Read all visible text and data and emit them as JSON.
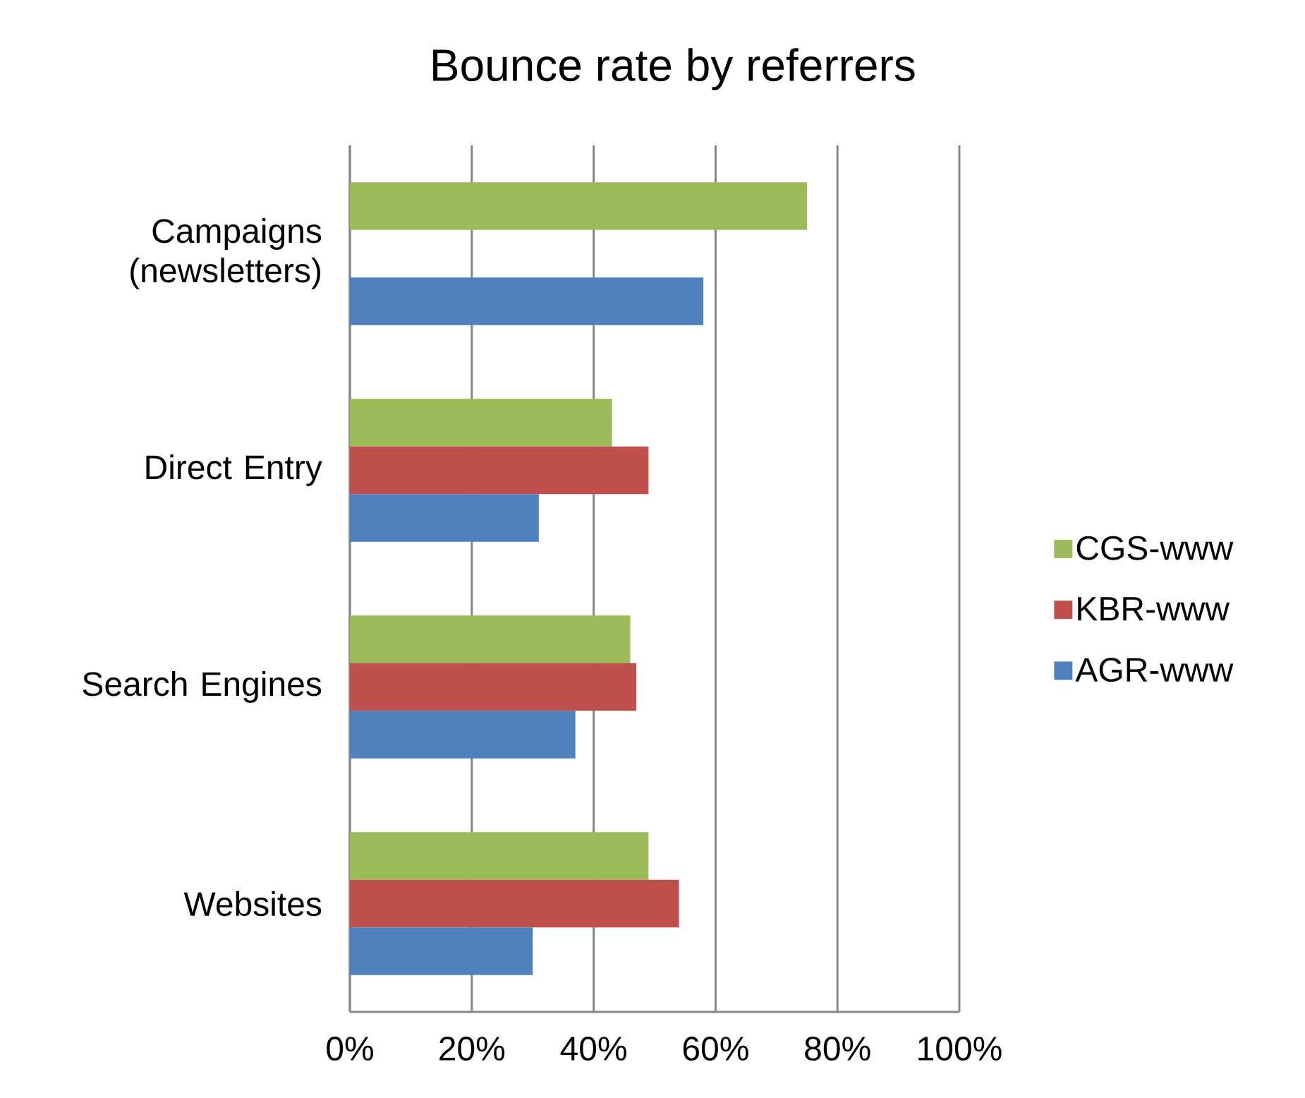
{
  "chart_data": {
    "type": "bar",
    "orientation": "horizontal",
    "title": "Bounce rate by referrers",
    "categories": [
      "Campaigns (newsletters)",
      "Direct Entry",
      "Search Engines",
      "Websites"
    ],
    "series": [
      {
        "name": "CGS-www",
        "color": "#9bbb59",
        "values": [
          75,
          43,
          46,
          49
        ]
      },
      {
        "name": "KBR-www",
        "color": "#c0504d",
        "values": [
          null,
          49,
          47,
          54
        ]
      },
      {
        "name": "AGR-www",
        "color": "#4f81bd",
        "values": [
          58,
          31,
          37,
          30
        ]
      }
    ],
    "xlim": [
      0,
      100
    ],
    "xticks": [
      {
        "value": 0,
        "label": "0%"
      },
      {
        "value": 20,
        "label": "20%"
      },
      {
        "value": 40,
        "label": "40%"
      },
      {
        "value": 60,
        "label": "60%"
      },
      {
        "value": 80,
        "label": "80%"
      },
      {
        "value": 100,
        "label": "100%"
      }
    ],
    "grid": "x",
    "legend": "right"
  }
}
